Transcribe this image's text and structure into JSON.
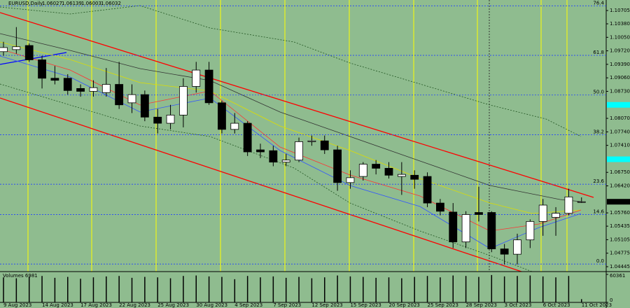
{
  "chart_data": {
    "type": "candlestick",
    "symbol": "EURUSD,Daily",
    "categories": [
      "9 Aug 2023",
      null,
      null,
      "14 Aug 2023",
      null,
      null,
      "17 Aug 2023",
      null,
      null,
      "22 Aug 2023",
      null,
      null,
      "25 Aug 2023",
      null,
      null,
      "30 Aug 2023",
      null,
      null,
      "4 Sep 2023",
      null,
      null,
      "7 Sep 2023",
      null,
      null,
      "12 Sep 2023",
      null,
      null,
      "15 Sep 2023",
      null,
      null,
      "20 Sep 2023",
      null,
      null,
      "25 Sep 2023",
      null,
      null,
      "28 Sep 2023",
      null,
      null,
      "3 Oct 2023",
      null,
      null,
      "6 Oct 2023",
      null,
      null,
      "11 Oct 2023"
    ],
    "open": [
      1.097,
      1.0975,
      1.0985,
      1.095,
      1.0905,
      1.0905,
      1.088,
      1.0873,
      1.087,
      1.089,
      1.0845,
      1.0865,
      1.081,
      1.0795,
      1.0815,
      1.0885,
      1.0925,
      1.0845,
      1.078,
      1.0795,
      1.073,
      1.0728,
      1.07,
      1.0705,
      1.075,
      1.0752,
      1.073,
      1.065,
      1.0665,
      1.0695,
      1.0685,
      1.0665,
      1.0668,
      1.0665,
      1.06,
      1.0578,
      1.0505,
      1.0577,
      1.0577,
      1.0488,
      1.0475,
      1.051,
      1.0555,
      1.0565,
      1.0575,
      1.06027
    ],
    "high": [
      1.0994,
      1.103,
      1.099,
      1.096,
      1.0935,
      1.0915,
      1.089,
      1.09,
      1.093,
      1.0945,
      1.089,
      1.0875,
      1.083,
      1.084,
      1.0905,
      1.0945,
      1.0945,
      1.085,
      1.082,
      1.08,
      1.0745,
      1.074,
      1.072,
      1.076,
      1.0765,
      1.0765,
      1.074,
      1.068,
      1.07,
      1.0705,
      1.07,
      1.07,
      1.068,
      1.0675,
      1.061,
      1.06,
      1.058,
      1.064,
      1.058,
      1.05,
      1.0525,
      1.056,
      1.061,
      1.059,
      1.0635,
      1.06139
    ],
    "low": [
      1.096,
      1.0965,
      1.0945,
      1.088,
      1.089,
      1.0865,
      1.086,
      1.086,
      1.086,
      1.083,
      1.082,
      1.08,
      1.077,
      1.078,
      1.0785,
      1.087,
      1.084,
      1.077,
      1.077,
      1.0715,
      1.071,
      1.069,
      1.069,
      1.07,
      1.074,
      1.072,
      1.063,
      1.0635,
      1.0655,
      1.067,
      1.066,
      1.062,
      1.0635,
      1.059,
      1.057,
      1.049,
      1.049,
      1.0555,
      1.048,
      1.045,
      1.045,
      1.049,
      1.052,
      1.052,
      1.057,
      1.06003
    ],
    "close": [
      1.098,
      1.0982,
      1.095,
      1.0905,
      1.09,
      1.0875,
      1.0873,
      1.0882,
      1.089,
      1.084,
      1.0865,
      1.081,
      1.0795,
      1.0815,
      1.0885,
      1.0925,
      1.0845,
      1.078,
      1.0795,
      1.0725,
      1.0725,
      1.07,
      1.0705,
      1.075,
      1.0752,
      1.073,
      1.065,
      1.0662,
      1.0695,
      1.0685,
      1.0668,
      1.067,
      1.0658,
      1.06,
      1.058,
      1.0505,
      1.0572,
      1.0572,
      1.0488,
      1.0475,
      1.051,
      1.0555,
      1.0595,
      1.0575,
      1.0615,
      1.06032
    ],
    "ylim": [
      1.04325,
      1.10962
    ],
    "yticks": [
      1.10705,
      {
        "value": 1.1038,
        "label": "1.10380"
      },
      {
        "value": 1.1005,
        "label": "1.10050"
      },
      {
        "value": 1.0972,
        "label": "1.09720"
      },
      {
        "value": 1.0939,
        "label": "1.09390"
      },
      {
        "value": 1.0906,
        "label": "1.09060"
      },
      {
        "value": 1.0873,
        "label": "1.08730"
      },
      {
        "value": 1.0807,
        "label": "1.08070"
      },
      {
        "value": 1.0774,
        "label": "1.07740"
      },
      {
        "value": 1.0741,
        "label": "1.07410"
      },
      {
        "value": 1.0675,
        "label": "1.06750"
      },
      {
        "value": 1.0642,
        "label": "1.06420"
      },
      {
        "value": 1.0576,
        "label": "1.05760"
      },
      1.05435,
      1.05105,
      1.04775,
      1.04445
    ],
    "fib_levels": [
      {
        "value": 76.4,
        "label": "76.4",
        "price": 1.1082
      },
      {
        "value": 61.8,
        "label": "61.8",
        "price": 1.0961
      },
      {
        "value": 50,
        "label": "50.0",
        "price": 1.0864
      },
      {
        "value": 38.2,
        "label": "38.2",
        "price": 1.0767
      },
      {
        "value": 23.6,
        "label": "23.6",
        "price": 1.0646
      },
      {
        "value": 14.6,
        "label": "14.6",
        "price": 1.0572
      },
      {
        "value": 0,
        "label": "0.0",
        "price": 1.0451
      }
    ],
    "axis_markers": [
      1.084,
      1.0707
    ],
    "volume_title": "Volumes 6981",
    "volumes": [
      54000,
      52000,
      56000,
      57000,
      53000,
      55000,
      51000,
      54000,
      56000,
      57000,
      53000,
      55000,
      54000,
      52000,
      57000,
      58000,
      56000,
      55000,
      50000,
      57000,
      54000,
      56000,
      53000,
      55000,
      52000,
      54000,
      58000,
      56000,
      55000,
      53000,
      54000,
      52000,
      55000,
      57000,
      54000,
      58000,
      57000,
      55000,
      59000,
      56000,
      57000,
      58000,
      56000,
      54000,
      57000,
      6981
    ],
    "vlim": [
      0,
      60361
    ],
    "vticks": [
      60361,
      0
    ],
    "up_color": "#ffffff",
    "down_color": "#000000",
    "background": "#8fbc8f"
  }
}
